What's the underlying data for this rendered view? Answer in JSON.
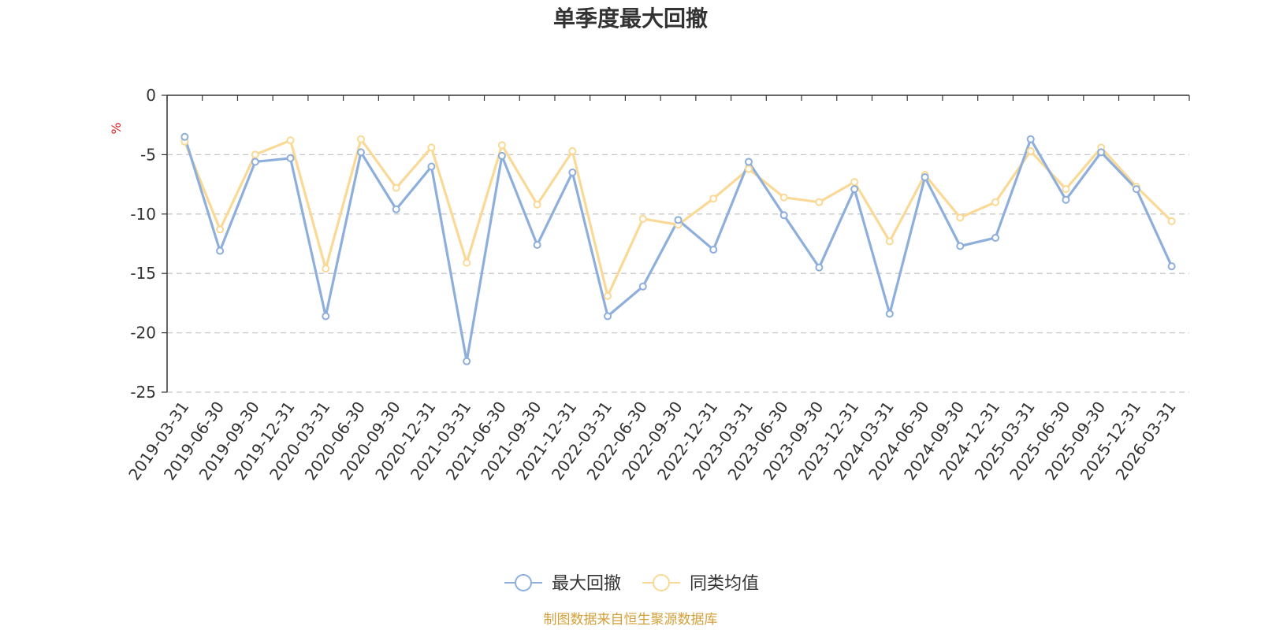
{
  "chart_data": {
    "type": "line",
    "title": "单季度最大回撤",
    "ylabel": "%",
    "xlabel": "",
    "ylim": [
      -25,
      0
    ],
    "yticks": [
      0,
      -5,
      -10,
      -15,
      -20,
      -25
    ],
    "grid": true,
    "legend_position": "bottom-center",
    "categories": [
      "2019-03-31",
      "2019-06-30",
      "2019-09-30",
      "2019-12-31",
      "2020-03-31",
      "2020-06-30",
      "2020-09-30",
      "2020-12-31",
      "2021-03-31",
      "2021-06-30",
      "2021-09-30",
      "2021-12-31",
      "2022-03-31",
      "2022-06-30",
      "2022-09-30",
      "2022-12-31",
      "2023-03-31",
      "2023-06-30",
      "2023-09-30",
      "2023-12-31",
      "2024-03-31",
      "2024-06-30",
      "2024-09-30",
      "2024-12-31",
      "2025-03-31",
      "2025-06-30",
      "2025-09-30",
      "2025-12-31",
      "2026-03-31"
    ],
    "series": [
      {
        "name": "最大回撤",
        "color": "#8eaedb",
        "values": [
          -3.5,
          -13.1,
          -5.6,
          -5.3,
          -18.6,
          -4.8,
          -9.6,
          -6.0,
          -22.4,
          -5.1,
          -12.6,
          -6.5,
          -18.6,
          -16.1,
          -10.5,
          -13.0,
          -5.6,
          -10.1,
          -14.5,
          -7.9,
          -18.4,
          -6.9,
          -12.7,
          -12.0,
          -3.7,
          -8.8,
          -4.8,
          -7.9,
          -14.4
        ]
      },
      {
        "name": "同类均值",
        "color": "#fad996",
        "values": [
          -3.9,
          -11.3,
          -5.0,
          -3.8,
          -14.6,
          -3.7,
          -7.8,
          -4.4,
          -14.1,
          -4.2,
          -9.2,
          -4.7,
          -16.9,
          -10.4,
          -10.9,
          -8.7,
          -6.2,
          -8.6,
          -9.0,
          -7.3,
          -12.3,
          -6.7,
          -10.3,
          -9.0,
          -4.7,
          -7.9,
          -4.4,
          -7.7,
          -10.6
        ]
      }
    ]
  },
  "source": {
    "text": "制图数据来自恒生聚源数据库",
    "color": "#d4a03a"
  },
  "unit_color": "#e02020"
}
